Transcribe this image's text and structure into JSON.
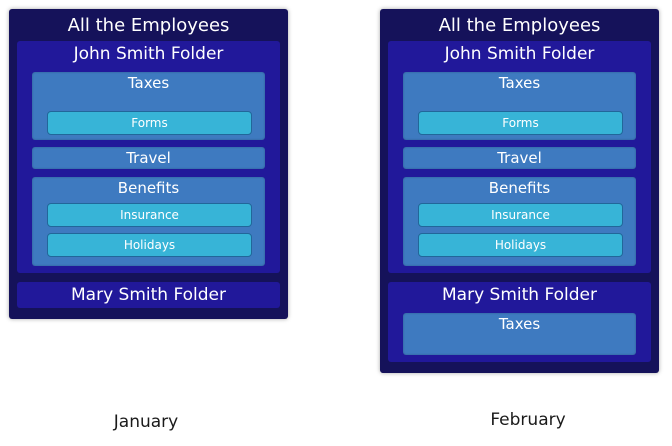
{
  "january": {
    "root": "All the Employees",
    "john_folder": {
      "title": "John Smith Folder",
      "taxes": {
        "title": "Taxes",
        "forms": "Forms"
      },
      "travel": "Travel",
      "benefits": {
        "title": "Benefits",
        "insurance": "Insurance",
        "holidays": "Holidays"
      }
    },
    "mary_folder": {
      "title": "Mary Smith Folder"
    },
    "caption": "January"
  },
  "february": {
    "root": "All the Employees",
    "john_folder": {
      "title": "John Smith Folder",
      "taxes": {
        "title": "Taxes",
        "forms": "Forms"
      },
      "travel": "Travel",
      "benefits": {
        "title": "Benefits",
        "insurance": "Insurance",
        "holidays": "Holidays"
      }
    },
    "mary_folder": {
      "title": "Mary Smith Folder",
      "taxes": "Taxes"
    },
    "caption": "February"
  },
  "colors": {
    "panel": "#15125a",
    "folder": "#21189a",
    "topic": "#3e7ac0",
    "document": "#37b4d7",
    "text": "#ffffff"
  }
}
